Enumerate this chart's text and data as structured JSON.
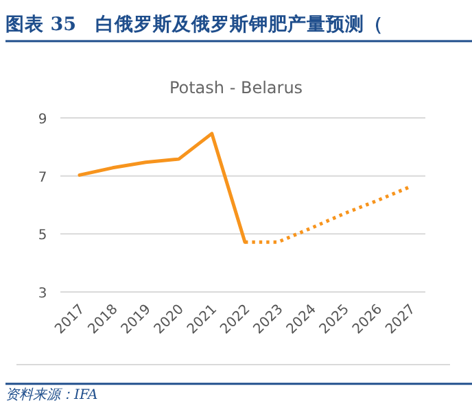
{
  "chart_data": {
    "type": "line",
    "title": "图表 35　白俄罗斯及俄罗斯钾肥产量预测（",
    "subtitle": "Potash - Belarus",
    "annotations": [
      "资料来源：IFA"
    ],
    "categories": [
      "2017",
      "2018",
      "2019",
      "2020",
      "2021",
      "2022",
      "2023",
      "2024",
      "2025",
      "2026",
      "2027"
    ],
    "series": [
      {
        "color": "#f7941d",
        "line_style": "solid",
        "values": [
          7.03,
          7.28,
          7.47,
          7.58,
          8.46,
          4.72,
          null,
          null,
          null,
          null,
          null
        ]
      },
      {
        "color": "#f7941d",
        "line_style": "dotted",
        "values": [
          null,
          null,
          null,
          null,
          null,
          4.72,
          4.72,
          5.2,
          5.7,
          6.15,
          6.63
        ]
      }
    ],
    "ylim": [
      3,
      9
    ],
    "yticks": [
      3,
      5,
      7,
      9
    ],
    "grid": "y",
    "marker": "none"
  }
}
